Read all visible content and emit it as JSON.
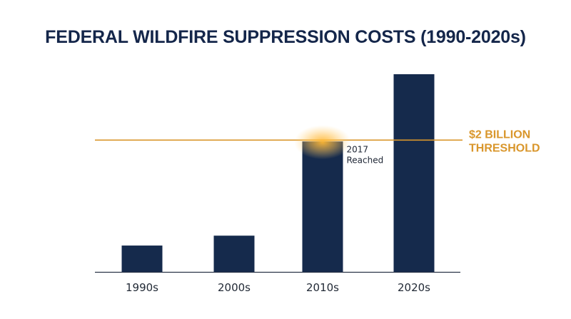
{
  "chart_data": {
    "type": "bar",
    "title": "FEDERAL WILDFIRE SUPPRESSION COSTS (1990-2020s)",
    "xlabel": "",
    "ylabel": "",
    "categories": [
      "1990s",
      "2000s",
      "2010s",
      "2020s"
    ],
    "values": [
      0.4,
      0.55,
      1.98,
      3.0
    ],
    "ylim": [
      0,
      3.0
    ],
    "grid": false,
    "threshold": {
      "value": 2.0,
      "label_lines": [
        "$2 BILLION",
        "THRESHOLD"
      ]
    },
    "annotations": [
      {
        "category": "2010s",
        "lines": [
          "2017",
          "Reached"
        ]
      }
    ]
  },
  "colors": {
    "bar": "#152a4c",
    "threshold": "#d9962b",
    "glow": "#ffb833",
    "title": "#14264a"
  }
}
